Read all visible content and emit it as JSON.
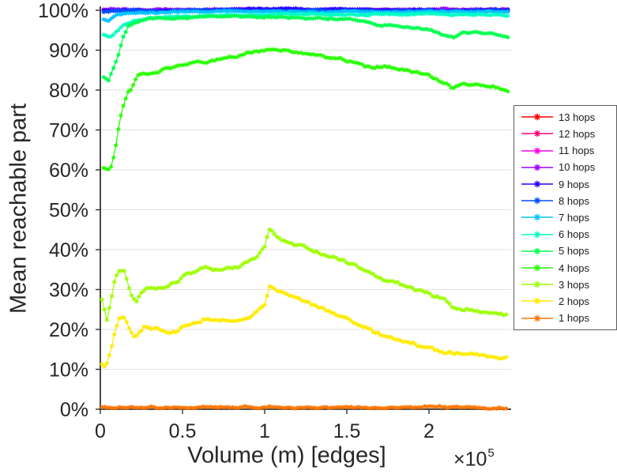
{
  "chart_data": {
    "type": "line",
    "title": "",
    "xlabel": "Volume (m) [edges]",
    "ylabel": "Mean reachable part",
    "x_multiplier": {
      "base": "×10",
      "exp": "5"
    },
    "xlim": [
      0,
      2.5
    ],
    "ylim": [
      0,
      100
    ],
    "x_unit_scale": "1e5",
    "grid": "horizontal-only",
    "marker": "asterisk",
    "legend_position": "right-outside",
    "x_ticks": [
      {
        "v": 0,
        "label": "0"
      },
      {
        "v": 0.5,
        "label": "0.5"
      },
      {
        "v": 1,
        "label": "1"
      },
      {
        "v": 1.5,
        "label": "1.5"
      },
      {
        "v": 2,
        "label": "2"
      }
    ],
    "y_ticks": [
      {
        "v": 0,
        "label": "0%"
      },
      {
        "v": 10,
        "label": "10%"
      },
      {
        "v": 20,
        "label": "20%"
      },
      {
        "v": 30,
        "label": "30%"
      },
      {
        "v": 40,
        "label": "40%"
      },
      {
        "v": 50,
        "label": "50%"
      },
      {
        "v": 60,
        "label": "60%"
      },
      {
        "v": 70,
        "label": "70%"
      },
      {
        "v": 80,
        "label": "80%"
      },
      {
        "v": 90,
        "label": "90%"
      },
      {
        "v": 100,
        "label": "100%"
      }
    ],
    "series": [
      {
        "name": "13 hops",
        "color": "#FF0000",
        "noise": 0.18,
        "points": [
          [
            0.02,
            100
          ],
          [
            2.48,
            100
          ]
        ]
      },
      {
        "name": "12 hops",
        "color": "#FF0076",
        "noise": 0.18,
        "points": [
          [
            0.02,
            100
          ],
          [
            2.48,
            100
          ]
        ]
      },
      {
        "name": "11 hops",
        "color": "#FF00EB",
        "noise": 0.18,
        "points": [
          [
            0.02,
            100
          ],
          [
            2.48,
            100
          ]
        ]
      },
      {
        "name": "10 hops",
        "color": "#9D00FF",
        "noise": 0.32,
        "points": [
          [
            0.02,
            100.2
          ],
          [
            2.48,
            100.2
          ]
        ]
      },
      {
        "name": "9 hops",
        "color": "#2700FF",
        "noise": 0.3,
        "points": [
          [
            0.02,
            99.9
          ],
          [
            0.1,
            100.1
          ],
          [
            2.48,
            100.1
          ]
        ]
      },
      {
        "name": "8 hops",
        "color": "#004FFF",
        "noise": 0.28,
        "points": [
          [
            0.02,
            99.6
          ],
          [
            0.1,
            99.9
          ],
          [
            2.48,
            99.9
          ]
        ]
      },
      {
        "name": "7 hops",
        "color": "#00C4FF",
        "noise": 0.25,
        "points": [
          [
            0.02,
            97.8
          ],
          [
            0.05,
            97.4
          ],
          [
            0.1,
            98.8
          ],
          [
            0.2,
            99.3
          ],
          [
            0.5,
            99.6
          ],
          [
            2.48,
            99.6
          ]
        ]
      },
      {
        "name": "6 hops",
        "color": "#00FFC4",
        "noise": 0.28,
        "points": [
          [
            0.02,
            93.8
          ],
          [
            0.06,
            93.2
          ],
          [
            0.1,
            94.8
          ],
          [
            0.14,
            96.2
          ],
          [
            0.2,
            97.2
          ],
          [
            0.3,
            97.9
          ],
          [
            0.5,
            98.5
          ],
          [
            0.8,
            98.9
          ],
          [
            1.2,
            99.1
          ],
          [
            1.6,
            99.1
          ],
          [
            2.0,
            99.0
          ],
          [
            2.2,
            98.8
          ],
          [
            2.48,
            98.8
          ]
        ]
      },
      {
        "name": "5 hops",
        "color": "#00FF4F",
        "noise": 0.3,
        "points": [
          [
            0.02,
            83.2
          ],
          [
            0.05,
            82.4
          ],
          [
            0.08,
            85.5
          ],
          [
            0.11,
            89.0
          ],
          [
            0.14,
            93.5
          ],
          [
            0.17,
            96.3
          ],
          [
            0.22,
            97.2
          ],
          [
            0.3,
            97.8
          ],
          [
            0.5,
            98.2
          ],
          [
            0.8,
            98.4
          ],
          [
            1.1,
            98.3
          ],
          [
            1.3,
            98.1
          ],
          [
            1.5,
            97.9
          ],
          [
            1.6,
            97.0
          ],
          [
            1.7,
            96.3
          ],
          [
            1.8,
            96.0
          ],
          [
            1.95,
            95.7
          ],
          [
            2.02,
            95.0
          ],
          [
            2.09,
            94.0
          ],
          [
            2.15,
            93.4
          ],
          [
            2.2,
            94.6
          ],
          [
            2.3,
            94.4
          ],
          [
            2.38,
            94.2
          ],
          [
            2.43,
            93.6
          ],
          [
            2.48,
            93.2
          ]
        ]
      },
      {
        "name": "4 hops",
        "color": "#27FF00",
        "noise": 0.45,
        "points": [
          [
            0.02,
            60.5
          ],
          [
            0.06,
            59.6
          ],
          [
            0.09,
            64.5
          ],
          [
            0.11,
            70.0
          ],
          [
            0.13,
            74.5
          ],
          [
            0.15,
            77.5
          ],
          [
            0.17,
            79.4
          ],
          [
            0.19,
            79.9
          ],
          [
            0.22,
            83.3
          ],
          [
            0.26,
            84.0
          ],
          [
            0.3,
            84.2
          ],
          [
            0.33,
            84.0
          ],
          [
            0.36,
            84.6
          ],
          [
            0.4,
            85.3
          ],
          [
            0.45,
            85.8
          ],
          [
            0.5,
            86.2
          ],
          [
            0.6,
            86.8
          ],
          [
            0.7,
            87.3
          ],
          [
            0.8,
            88.2
          ],
          [
            0.9,
            89.2
          ],
          [
            1.0,
            89.8
          ],
          [
            1.05,
            90.1
          ],
          [
            1.1,
            89.6
          ],
          [
            1.18,
            89.4
          ],
          [
            1.25,
            89.1
          ],
          [
            1.35,
            88.3
          ],
          [
            1.45,
            87.5
          ],
          [
            1.55,
            86.7
          ],
          [
            1.62,
            85.9
          ],
          [
            1.67,
            85.6
          ],
          [
            1.72,
            86.0
          ],
          [
            1.8,
            85.2
          ],
          [
            1.9,
            84.4
          ],
          [
            1.99,
            83.9
          ],
          [
            2.05,
            82.8
          ],
          [
            2.09,
            81.9
          ],
          [
            2.15,
            80.6
          ],
          [
            2.2,
            81.9
          ],
          [
            2.3,
            81.7
          ],
          [
            2.38,
            81.0
          ],
          [
            2.43,
            80.2
          ],
          [
            2.48,
            79.6
          ]
        ]
      },
      {
        "name": "3 hops",
        "color": "#9DFF00",
        "noise": 0.5,
        "points": [
          [
            0.01,
            27.4
          ],
          [
            0.04,
            22.2
          ],
          [
            0.07,
            28.0
          ],
          [
            0.09,
            33.0
          ],
          [
            0.12,
            35.3
          ],
          [
            0.15,
            34.6
          ],
          [
            0.17,
            31.0
          ],
          [
            0.19,
            28.3
          ],
          [
            0.22,
            27.0
          ],
          [
            0.26,
            29.6
          ],
          [
            0.3,
            30.4
          ],
          [
            0.34,
            30.0
          ],
          [
            0.38,
            30.3
          ],
          [
            0.41,
            31.0
          ],
          [
            0.45,
            31.8
          ],
          [
            0.48,
            32.6
          ],
          [
            0.54,
            34.0
          ],
          [
            0.6,
            34.8
          ],
          [
            0.64,
            35.7
          ],
          [
            0.68,
            35.0
          ],
          [
            0.72,
            34.7
          ],
          [
            0.78,
            35.1
          ],
          [
            0.84,
            35.6
          ],
          [
            0.9,
            36.8
          ],
          [
            0.94,
            37.7
          ],
          [
            0.97,
            39.0
          ],
          [
            1.0,
            40.8
          ],
          [
            1.03,
            45.0
          ],
          [
            1.07,
            43.4
          ],
          [
            1.12,
            42.2
          ],
          [
            1.2,
            41.2
          ],
          [
            1.3,
            39.8
          ],
          [
            1.4,
            38.0
          ],
          [
            1.51,
            36.6
          ],
          [
            1.56,
            36.0
          ],
          [
            1.6,
            35.0
          ],
          [
            1.66,
            34.0
          ],
          [
            1.72,
            32.8
          ],
          [
            1.8,
            31.6
          ],
          [
            1.89,
            30.6
          ],
          [
            1.99,
            29.0
          ],
          [
            2.05,
            28.2
          ],
          [
            2.1,
            27.2
          ],
          [
            2.14,
            25.5
          ],
          [
            2.22,
            25.3
          ],
          [
            2.3,
            24.6
          ],
          [
            2.38,
            24.0
          ],
          [
            2.48,
            23.4
          ]
        ]
      },
      {
        "name": "2 hops",
        "color": "#FFEB00",
        "noise": 0.5,
        "points": [
          [
            0.01,
            11.1
          ],
          [
            0.03,
            10.6
          ],
          [
            0.05,
            12.7
          ],
          [
            0.08,
            18.0
          ],
          [
            0.11,
            22.5
          ],
          [
            0.14,
            23.3
          ],
          [
            0.17,
            20.7
          ],
          [
            0.2,
            17.9
          ],
          [
            0.23,
            18.7
          ],
          [
            0.27,
            20.6
          ],
          [
            0.31,
            20.0
          ],
          [
            0.35,
            20.4
          ],
          [
            0.39,
            19.6
          ],
          [
            0.42,
            19.2
          ],
          [
            0.46,
            19.6
          ],
          [
            0.5,
            20.6
          ],
          [
            0.55,
            21.2
          ],
          [
            0.6,
            22.1
          ],
          [
            0.65,
            22.7
          ],
          [
            0.7,
            22.7
          ],
          [
            0.76,
            22.5
          ],
          [
            0.82,
            22.5
          ],
          [
            0.88,
            23.2
          ],
          [
            0.92,
            23.8
          ],
          [
            0.96,
            25.2
          ],
          [
            1.0,
            26.3
          ],
          [
            1.03,
            31.0
          ],
          [
            1.08,
            30.0
          ],
          [
            1.15,
            28.8
          ],
          [
            1.23,
            27.6
          ],
          [
            1.33,
            25.6
          ],
          [
            1.42,
            24.0
          ],
          [
            1.51,
            22.5
          ],
          [
            1.6,
            21.0
          ],
          [
            1.7,
            19.1
          ],
          [
            1.8,
            17.5
          ],
          [
            1.9,
            16.4
          ],
          [
            2.0,
            15.4
          ],
          [
            2.09,
            14.3
          ],
          [
            2.18,
            13.9
          ],
          [
            2.28,
            13.7
          ],
          [
            2.35,
            13.4
          ],
          [
            2.48,
            12.6
          ]
        ]
      },
      {
        "name": "1 hops",
        "color": "#FF7600",
        "noise": 0.3,
        "points": [
          [
            0.01,
            0.45
          ],
          [
            2.48,
            0.4
          ]
        ]
      }
    ]
  }
}
